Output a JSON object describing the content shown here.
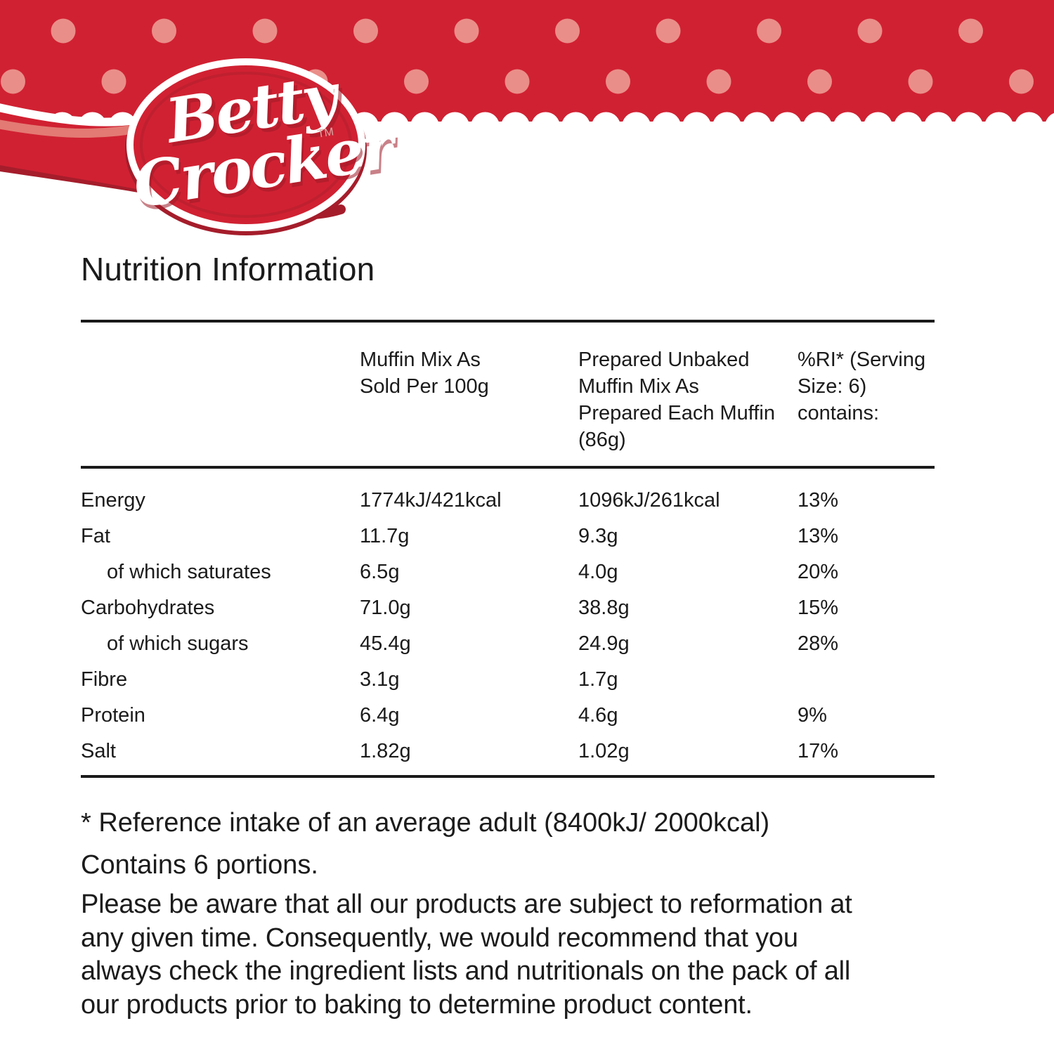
{
  "brand": {
    "name_line1": "Betty",
    "name_line2": "Crocker",
    "trademark": "TM"
  },
  "colors": {
    "band_red": "#D02132",
    "dot_pink": "#EA8E89",
    "shadow_red": "#A51D2B",
    "highlight_pink": "#E37A74",
    "rim_red": "#AD1F2C",
    "text_black": "#1B1B1B"
  },
  "title": "Nutrition Information",
  "table": {
    "columns": [
      "",
      "Muffin Mix As Sold Per 100g",
      "Prepared Unbaked Muffin Mix As Prepared Each Muffin (86g)",
      "%RI* (Serving Size: 6) contains:"
    ],
    "rows": [
      {
        "label": "Energy",
        "indent": false,
        "as_sold": "1774kJ/421kcal",
        "prepared": "1096kJ/261kcal",
        "ri": "13%"
      },
      {
        "label": "Fat",
        "indent": false,
        "as_sold": "11.7g",
        "prepared": "9.3g",
        "ri": "13%"
      },
      {
        "label": "of which saturates",
        "indent": true,
        "as_sold": "6.5g",
        "prepared": "4.0g",
        "ri": "20%"
      },
      {
        "label": "Carbohydrates",
        "indent": false,
        "as_sold": "71.0g",
        "prepared": "38.8g",
        "ri": "15%"
      },
      {
        "label": "of which sugars",
        "indent": true,
        "as_sold": "45.4g",
        "prepared": "24.9g",
        "ri": "28%"
      },
      {
        "label": "Fibre",
        "indent": false,
        "as_sold": "3.1g",
        "prepared": "1.7g",
        "ri": ""
      },
      {
        "label": "Protein",
        "indent": false,
        "as_sold": "6.4g",
        "prepared": "4.6g",
        "ri": "9%"
      },
      {
        "label": "Salt",
        "indent": false,
        "as_sold": "1.82g",
        "prepared": "1.02g",
        "ri": "17%"
      }
    ]
  },
  "footnotes": {
    "reference": "* Reference intake of an average adult (8400kJ/ 2000kcal)",
    "portions": "Contains 6 portions.",
    "disclaimer_lines": [
      "Please be aware that all our products are subject to reformation at",
      "any given time. Consequently, we would recommend that you",
      "always check the ingredient lists and nutritionals on the pack of all",
      "our products prior to baking to determine product content."
    ]
  }
}
